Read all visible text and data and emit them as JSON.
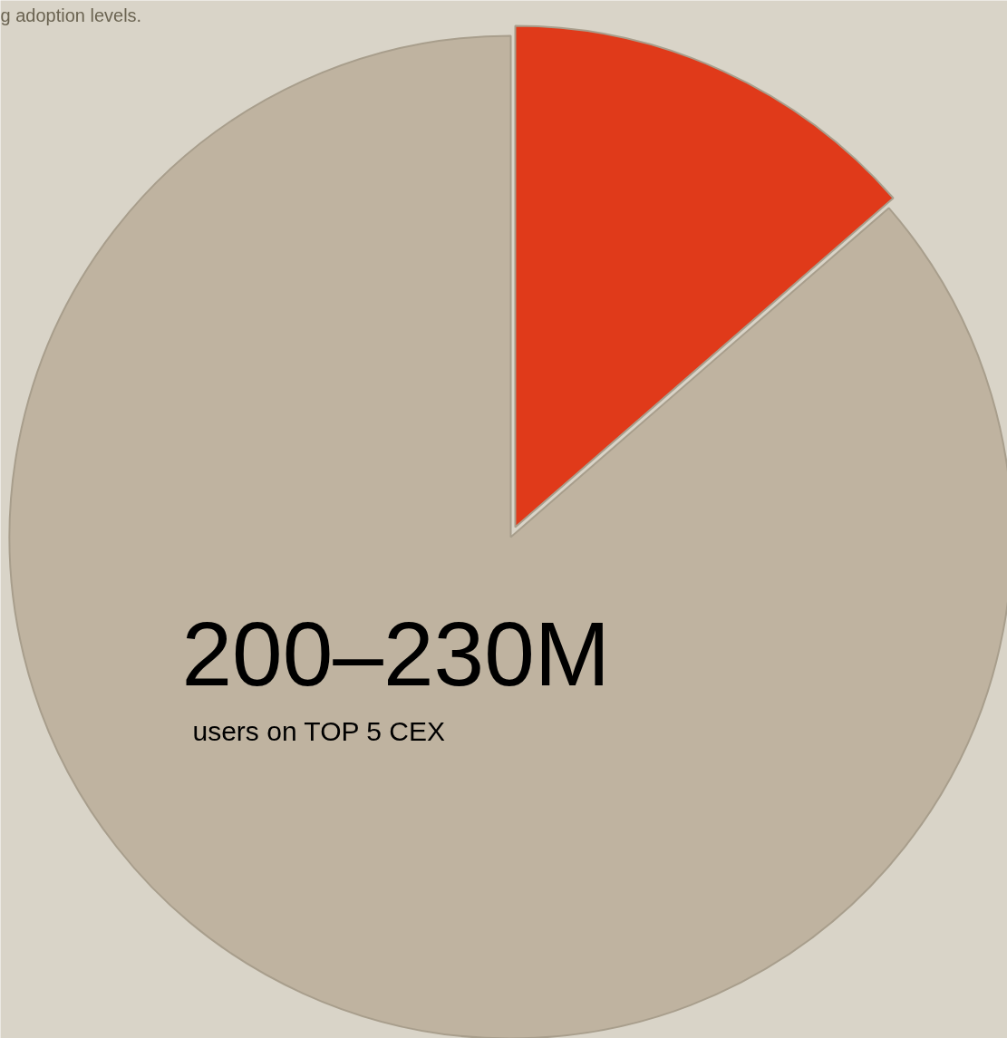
{
  "chart_data": {
    "type": "pie",
    "categories": [
      null,
      null
    ],
    "values": [
      13.6,
      86.4
    ],
    "colors": [
      "#e03a1a",
      "#bfb3a0"
    ],
    "annotations": [
      "g adoption levels.",
      "200–230M",
      "users on TOP 5 CEX"
    ]
  }
}
